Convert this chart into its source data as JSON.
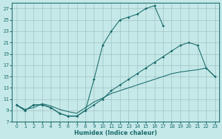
{
  "xlabel": "Humidex (Indice chaleur)",
  "bg_color": "#c5e8e8",
  "line_color": "#1a6b6b",
  "grid_color": "#a0c0c0",
  "xlim": [
    -0.5,
    23.5
  ],
  "ylim": [
    7,
    28
  ],
  "yticks": [
    7,
    9,
    11,
    13,
    15,
    17,
    19,
    21,
    23,
    25,
    27
  ],
  "xticks": [
    0,
    1,
    2,
    3,
    4,
    5,
    6,
    7,
    8,
    9,
    10,
    11,
    12,
    13,
    14,
    15,
    16,
    17,
    18,
    19,
    20,
    21,
    22,
    23
  ],
  "line1_x": [
    0,
    1,
    2,
    3,
    4,
    5,
    6,
    7,
    8,
    9,
    10,
    11,
    12,
    13,
    14,
    15,
    16,
    17
  ],
  "line1_y": [
    10,
    9,
    10,
    10,
    9.5,
    8.5,
    8.0,
    8.0,
    9.0,
    14.5,
    20.5,
    23.0,
    25.0,
    25.5,
    26.0,
    27.0,
    27.5,
    24.0
  ],
  "line2_x": [
    0,
    1,
    2,
    3,
    4,
    5,
    6,
    7,
    8,
    9,
    10,
    11,
    12,
    13,
    14,
    15,
    16,
    17,
    18,
    19,
    20,
    21,
    22,
    23
  ],
  "line2_y": [
    10,
    9,
    10,
    10,
    9.5,
    8.5,
    8.0,
    8.0,
    9.0,
    10.0,
    11.0,
    12.5,
    13.5,
    14.5,
    15.5,
    16.5,
    17.5,
    18.5,
    19.5,
    20.5,
    21.0,
    20.5,
    16.5,
    15.0
  ],
  "line3_x": [
    0,
    1,
    2,
    3,
    4,
    5,
    6,
    7,
    8,
    9,
    10,
    11,
    12,
    13,
    14,
    15,
    16,
    17,
    18,
    19,
    20,
    21,
    22,
    23
  ],
  "line3_y": [
    10,
    9.2,
    9.5,
    10.2,
    9.8,
    9.2,
    8.8,
    8.5,
    9.5,
    10.5,
    11.2,
    12.0,
    12.5,
    13.0,
    13.5,
    14.0,
    14.5,
    15.0,
    15.5,
    15.8,
    16.0,
    16.2,
    16.5,
    15.0
  ],
  "marker": "D",
  "markersize": 2.0,
  "linewidth": 0.8,
  "tick_fontsize": 5,
  "xlabel_fontsize": 6
}
